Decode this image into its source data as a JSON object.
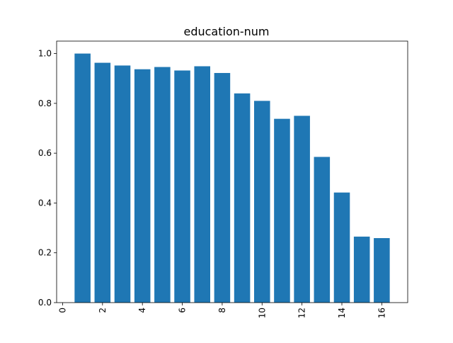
{
  "chart_data": {
    "type": "bar",
    "title": "education-num",
    "xlabel": "",
    "ylabel": "",
    "x": [
      1,
      2,
      3,
      4,
      5,
      6,
      7,
      8,
      9,
      10,
      11,
      12,
      13,
      14,
      15,
      16
    ],
    "values": [
      1.0,
      0.963,
      0.952,
      0.937,
      0.946,
      0.932,
      0.949,
      0.922,
      0.84,
      0.81,
      0.738,
      0.75,
      0.585,
      0.442,
      0.265,
      0.259
    ],
    "xlim": [
      -0.3,
      17.3
    ],
    "ylim": [
      0,
      1.05
    ],
    "xticks": [
      {
        "value": 0,
        "label": "0"
      },
      {
        "value": 2,
        "label": "2"
      },
      {
        "value": 4,
        "label": "4"
      },
      {
        "value": 6,
        "label": "6"
      },
      {
        "value": 8,
        "label": "8"
      },
      {
        "value": 10,
        "label": "10"
      },
      {
        "value": 12,
        "label": "12"
      },
      {
        "value": 14,
        "label": "14"
      },
      {
        "value": 16,
        "label": "16"
      }
    ],
    "yticks": [
      {
        "value": 0.0,
        "label": "0.0"
      },
      {
        "value": 0.2,
        "label": "0.2"
      },
      {
        "value": 0.4,
        "label": "0.4"
      },
      {
        "value": 0.6,
        "label": "0.6"
      },
      {
        "value": 0.8,
        "label": "0.8"
      },
      {
        "value": 1.0,
        "label": "1.0"
      }
    ],
    "xtick_rotation": 90,
    "grid": false,
    "legend": "none",
    "colors": {
      "bar": "#1f77b4",
      "axis": "#000000",
      "background": "#ffffff"
    }
  }
}
